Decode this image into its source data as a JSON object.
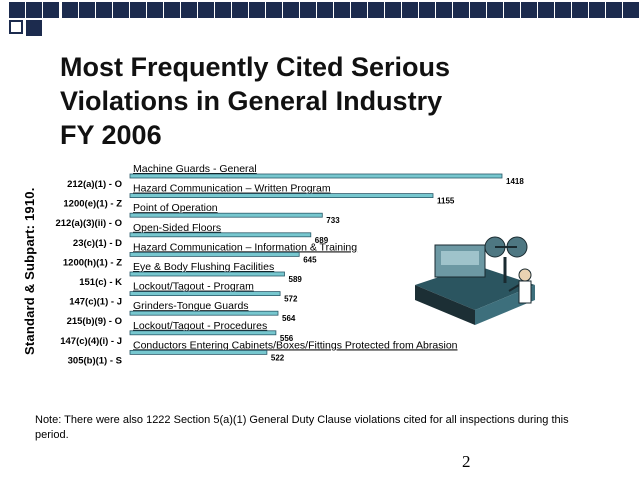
{
  "colors": {
    "bar_fill": "#77c7cf",
    "bar_edge": "#2b5a6a",
    "deco": "#1c2b4e"
  },
  "title_lines": [
    "Most Frequently Cited Serious",
    "Violations in General Industry",
    "FY 2006"
  ],
  "chart_data": {
    "type": "bar",
    "orientation": "horizontal",
    "title": "Most Frequently Cited Serious Violations in General Industry FY 2006",
    "ylabel": "Standard & Subpart: 1910.",
    "xlabel": "",
    "xlim": [
      0,
      1418
    ],
    "grid": false,
    "categories": [
      "212(a)(1) - O",
      "1200(e)(1) - Z",
      "212(a)(3)(ii) - O",
      "23(c)(1) - D",
      "1200(h)(1) - Z",
      "151(c) - K",
      "147(c)(1) - J",
      "215(b)(9) - O",
      "147(c)(4)(i) - J",
      "305(b)(1) - S"
    ],
    "values": [
      1418,
      1155,
      733,
      689,
      645,
      589,
      572,
      564,
      556,
      522
    ],
    "bar_descriptions": [
      "Machine Guards - General",
      "Hazard Communication – Written Program",
      "Point of Operation",
      "Open-Sided Floors",
      "Hazard Communication – Information & Training",
      "Eye & Body Flushing Facilities",
      "Lockout/Tagout - Program",
      "Grinders-Tongue Guards",
      "Lockout/Tagout - Procedures",
      "Conductors Entering Cabinets/Boxes/Fittings Protected from Abrasion"
    ]
  },
  "illustration_icon": "industrial-machine-worker-icon",
  "note": "Note: There were also 1222 Section 5(a)(1) General Duty Clause violations cited for all inspections during this period.",
  "page_number": "2"
}
